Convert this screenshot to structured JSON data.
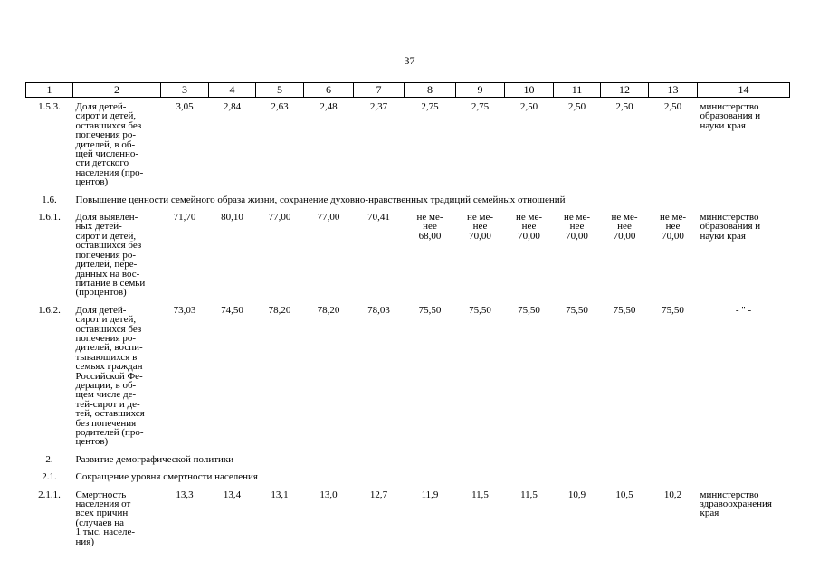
{
  "page_number": "37",
  "table": {
    "header": [
      "1",
      "2",
      "3",
      "4",
      "5",
      "6",
      "7",
      "8",
      "9",
      "10",
      "11",
      "12",
      "13",
      "14"
    ],
    "rows": [
      {
        "num": "1.5.3.",
        "name": [
          "Доля детей-",
          "сирот и детей,",
          "оставшихся без",
          "попечения ро-",
          "дителей, в об-",
          "щей численно-",
          "сти детского",
          "населения (про-",
          "центов)"
        ],
        "values": [
          "3,05",
          "2,84",
          "2,63",
          "2,48",
          "2,37",
          "2,75",
          "2,75",
          "2,50",
          "2,50",
          "2,50",
          "2,50"
        ],
        "responsible": [
          "министерство",
          "образования и",
          "науки края"
        ]
      },
      {
        "num": "1.6.",
        "section": "Повышение ценности семейного образа жизни, сохранение духовно-нравственных традиций семейных отношений"
      },
      {
        "num": "1.6.1.",
        "name": [
          "Доля выявлен-",
          "ных детей-",
          "сирот и детей,",
          "оставшихся без",
          "попечения ро-",
          "дителей, пере-",
          "данных на вос-",
          "питание в семьи",
          "(процентов)"
        ],
        "values": [
          "71,70",
          "80,10",
          "77,00",
          "77,00",
          "70,41",
          [
            "не ме-",
            "нее",
            "68,00"
          ],
          [
            "не ме-",
            "нее",
            "70,00"
          ],
          [
            "не ме-",
            "нее",
            "70,00"
          ],
          [
            "не ме-",
            "нее",
            "70,00"
          ],
          [
            "не ме-",
            "нее",
            "70,00"
          ],
          [
            "не ме-",
            "нее",
            "70,00"
          ]
        ],
        "responsible": [
          "министерство",
          "образования и",
          "науки края"
        ]
      },
      {
        "num": "1.6.2.",
        "name": [
          "Доля детей-",
          "сирот и детей,",
          "оставшихся без",
          "попечения ро-",
          "дителей, воспи-",
          "тывающихся в",
          "семьях граждан",
          "Российской Фе-",
          "дерации, в об-",
          "щем числе де-",
          "тей-сирот и де-",
          "тей, оставшихся",
          "без попечения",
          "родителей (про-",
          "центов)"
        ],
        "values": [
          "73,03",
          "74,50",
          "78,20",
          "78,20",
          "78,03",
          "75,50",
          "75,50",
          "75,50",
          "75,50",
          "75,50",
          "75,50"
        ],
        "responsible": [
          "- \" -"
        ]
      },
      {
        "num": "2.",
        "section": "Развитие демографической политики"
      },
      {
        "num": "2.1.",
        "section": "Сокращение уровня смертности населения"
      },
      {
        "num": "2.1.1.",
        "name": [
          "Смертность",
          "населения от",
          "всех причин",
          "(случаев на",
          "1 тыс. населе-",
          "ния)"
        ],
        "values": [
          "13,3",
          "13,4",
          "13,1",
          "13,0",
          "12,7",
          "11,9",
          "11,5",
          "11,5",
          "10,9",
          "10,5",
          "10,2"
        ],
        "responsible": [
          "министерство",
          "здравоохранения",
          "края"
        ]
      }
    ]
  }
}
